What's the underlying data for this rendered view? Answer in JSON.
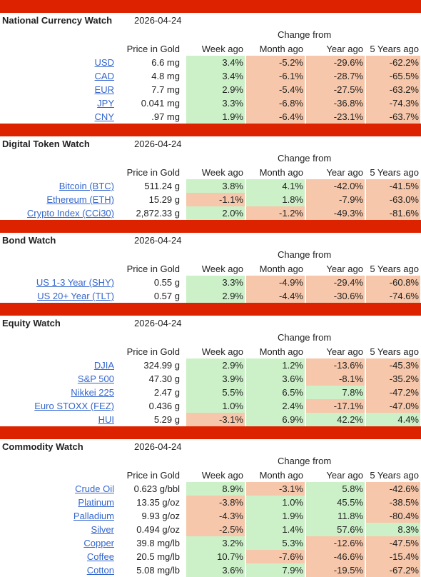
{
  "colors": {
    "bar": "#dd2200",
    "positive": "#ccf1c8",
    "negative": "#f6c7aa",
    "link": "#3466cc"
  },
  "columns": {
    "change_from": "Change from",
    "price": "Price in Gold",
    "week": "Week ago",
    "month": "Month ago",
    "year": "Year ago",
    "five_years": "5 Years ago"
  },
  "sections": [
    {
      "title": "National Currency Watch",
      "date": "2026-04-24",
      "rows": [
        {
          "name": "USD",
          "price": "6.6 mg",
          "week": "3.4%",
          "month": "-5.2%",
          "year": "-29.6%",
          "five": "-62.2%"
        },
        {
          "name": "CAD",
          "price": "4.8 mg",
          "week": "3.4%",
          "month": "-6.1%",
          "year": "-28.7%",
          "five": "-65.5%"
        },
        {
          "name": "EUR",
          "price": "7.7 mg",
          "week": "2.9%",
          "month": "-5.4%",
          "year": "-27.5%",
          "five": "-63.2%"
        },
        {
          "name": "JPY",
          "price": "0.041 mg",
          "week": "3.3%",
          "month": "-6.8%",
          "year": "-36.8%",
          "five": "-74.3%"
        },
        {
          "name": "CNY",
          "price": ".97 mg",
          "week": "1.9%",
          "month": "-6.4%",
          "year": "-23.1%",
          "five": "-63.7%"
        }
      ]
    },
    {
      "title": "Digital Token Watch",
      "date": "2026-04-24",
      "rows": [
        {
          "name": "Bitcoin (BTC)",
          "price": "511.24 g",
          "week": "3.8%",
          "month": "4.1%",
          "year": "-42.0%",
          "five": "-41.5%"
        },
        {
          "name": "Ethereum (ETH)",
          "price": "15.29 g",
          "week": "-1.1%",
          "month": "1.8%",
          "year": "-7.9%",
          "five": "-63.0%"
        },
        {
          "name": "Crypto Index (CCi30)",
          "price": "2,872.33 g",
          "week": "2.0%",
          "month": "-1.2%",
          "year": "-49.3%",
          "five": "-81.6%"
        }
      ]
    },
    {
      "title": "Bond Watch",
      "date": "2026-04-24",
      "rows": [
        {
          "name": "US 1-3 Year (SHY)",
          "price": "0.55 g",
          "week": "3.3%",
          "month": "-4.9%",
          "year": "-29.4%",
          "five": "-60.8%"
        },
        {
          "name": "US 20+ Year (TLT)",
          "price": "0.57 g",
          "week": "2.9%",
          "month": "-4.4%",
          "year": "-30.6%",
          "five": "-74.6%"
        }
      ]
    },
    {
      "title": "Equity Watch",
      "date": "2026-04-24",
      "rows": [
        {
          "name": "DJIA",
          "price": "324.99 g",
          "week": "2.9%",
          "month": "1.2%",
          "year": "-13.6%",
          "five": "-45.3%"
        },
        {
          "name": "S&P 500",
          "price": "47.30 g",
          "week": "3.9%",
          "month": "3.6%",
          "year": "-8.1%",
          "five": "-35.2%"
        },
        {
          "name": "Nikkei 225",
          "price": "2.47 g",
          "week": "5.5%",
          "month": "6.5%",
          "year": "7.8%",
          "five": "-47.2%"
        },
        {
          "name": "Euro STOXX (FEZ)",
          "price": "0.436 g",
          "week": "1.0%",
          "month": "2.4%",
          "year": "-17.1%",
          "five": "-47.0%"
        },
        {
          "name": "HUI",
          "price": "5.29 g",
          "week": "-3.1%",
          "month": "6.9%",
          "year": "42.2%",
          "five": "4.4%"
        }
      ]
    },
    {
      "title": "Commodity Watch",
      "date": "2026-04-24",
      "rows": [
        {
          "name": "Crude Oil",
          "price": "0.623 g/bbl",
          "week": "8.9%",
          "month": "-3.1%",
          "year": "5.8%",
          "five": "-42.6%"
        },
        {
          "name": "Platinum",
          "price": "13.35 g/oz",
          "week": "-3.8%",
          "month": "1.0%",
          "year": "45.5%",
          "five": "-38.5%"
        },
        {
          "name": "Palladium",
          "price": "9.93 g/oz",
          "week": "-4.3%",
          "month": "1.9%",
          "year": "11.8%",
          "five": "-80.4%"
        },
        {
          "name": "Silver",
          "price": "0.494 g/oz",
          "week": "-2.5%",
          "month": "1.4%",
          "year": "57.6%",
          "five": "8.3%"
        },
        {
          "name": "Copper",
          "price": "39.8 mg/lb",
          "week": "3.2%",
          "month": "5.3%",
          "year": "-12.6%",
          "five": "-47.5%"
        },
        {
          "name": "Coffee",
          "price": "20.5 mg/lb",
          "week": "10.7%",
          "month": "-7.6%",
          "year": "-46.6%",
          "five": "-15.4%"
        },
        {
          "name": "Cotton",
          "price": "5.08 mg/lb",
          "week": "3.6%",
          "month": "7.9%",
          "year": "-19.5%",
          "five": "-67.2%"
        }
      ]
    }
  ]
}
